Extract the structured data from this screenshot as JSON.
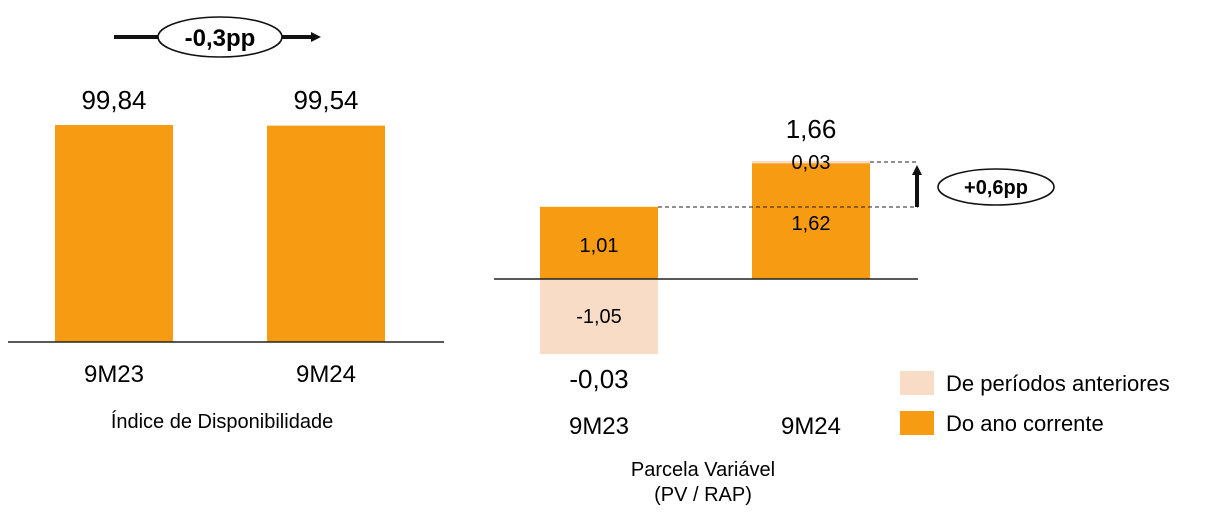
{
  "colors": {
    "current": "#F79B12",
    "previous": "#F9DCC6",
    "axis": "#222222",
    "text": "#222222"
  },
  "chart_data": [
    {
      "type": "bar",
      "title": "",
      "xlabel": "Índice de Disponibilidade",
      "ylabel": "",
      "categories": [
        "9M23",
        "9M24"
      ],
      "values": [
        99.84,
        99.54
      ],
      "value_labels": [
        "99,84",
        "99,54"
      ],
      "annotation": {
        "label": "-0,3pp",
        "direction": "right-arrow"
      }
    },
    {
      "type": "bar",
      "stacked": true,
      "title": "",
      "xlabel": "Parcela Variável",
      "xlabel_line2": "(PV / RAP)",
      "ylabel": "",
      "categories": [
        "9M23",
        "9M24"
      ],
      "series": [
        {
          "name": "Do ano corrente",
          "values": [
            1.01,
            1.62
          ],
          "labels": [
            "1,01",
            "1,62"
          ]
        },
        {
          "name": "De períodos anteriores",
          "values": [
            -1.05,
            0.03
          ],
          "labels": [
            "-1,05",
            "0,03"
          ]
        }
      ],
      "totals": [
        -0.03,
        1.66
      ],
      "total_labels": [
        "-0,03",
        "1,66"
      ],
      "annotation": {
        "label": "+0,6pp",
        "direction": "up-arrow"
      },
      "legend": {
        "position": "right",
        "items": [
          {
            "name": "De períodos anteriores",
            "color_key": "previous"
          },
          {
            "name": "Do ano corrente",
            "color_key": "current"
          }
        ]
      }
    }
  ]
}
